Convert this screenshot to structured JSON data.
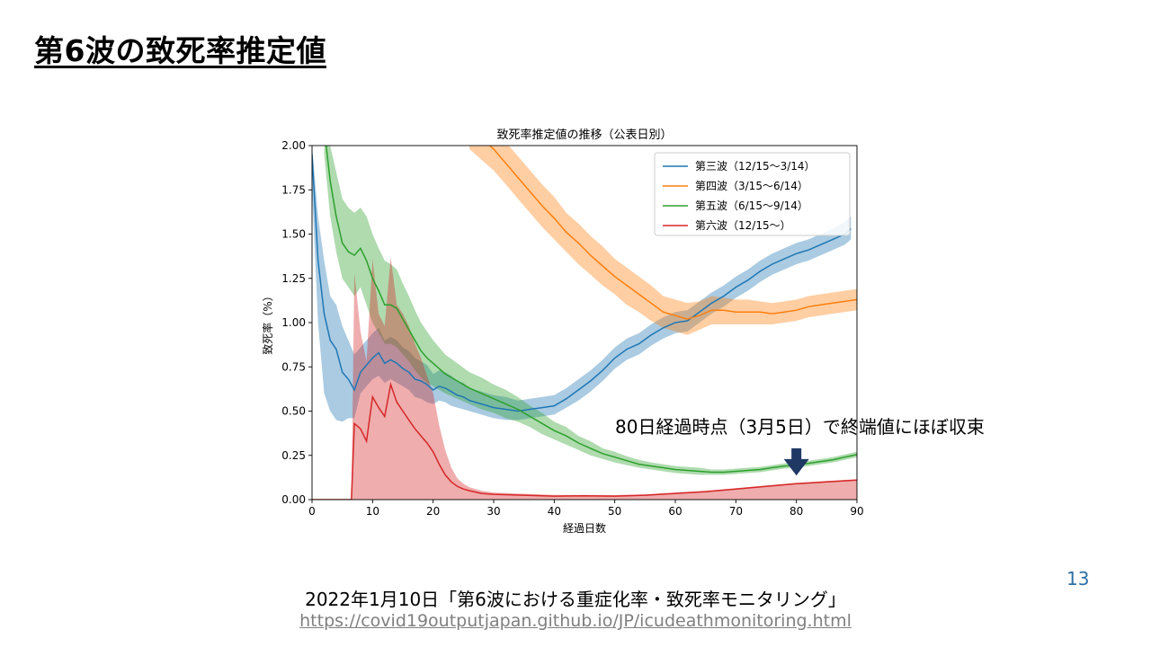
{
  "slide": {
    "title": "第6波の致死率推定値",
    "callout": "80日経過時点（3月5日）で終端値にほぼ収束",
    "page_number": "13",
    "source_title": "2022年1月10日「第6波における重症化率・致死率モニタリング」",
    "source_url": "https://covid19outputjapan.github.io/JP/icudeathmonitoring.html"
  },
  "colors": {
    "wave3": "#1f77b4",
    "wave4": "#ff7f0e",
    "wave5": "#2ca02c",
    "wave6": "#d62728",
    "arrow": "#1f3864"
  },
  "chart_data": {
    "type": "line",
    "title": "致死率推定値の推移（公表日別）",
    "xlabel": "経過日数",
    "ylabel": "致死率（%）",
    "xlim": [
      0,
      90
    ],
    "ylim": [
      0,
      2.0
    ],
    "xticks": [
      0,
      10,
      20,
      30,
      40,
      50,
      60,
      70,
      80,
      90
    ],
    "yticks": [
      0.0,
      0.25,
      0.5,
      0.75,
      1.0,
      1.25,
      1.5,
      1.75,
      2.0
    ],
    "legend_position": "top-right",
    "annotation": {
      "x": 80,
      "y": 0.11,
      "marker": "arrow-down"
    },
    "series": [
      {
        "name": "第三波（12/15〜3/14）",
        "x": [
          0,
          1,
          2,
          3,
          4,
          5,
          6,
          7,
          8,
          9,
          10,
          11,
          12,
          13,
          14,
          15,
          16,
          17,
          18,
          19,
          20,
          21,
          22,
          23,
          24,
          25,
          26,
          28,
          30,
          32,
          34,
          36,
          38,
          40,
          42,
          44,
          46,
          48,
          50,
          52,
          54,
          56,
          58,
          60,
          62,
          64,
          66,
          68,
          70,
          72,
          74,
          76,
          78,
          80,
          82,
          84,
          86,
          88,
          89
        ],
        "y": [
          1.95,
          1.35,
          1.05,
          0.9,
          0.85,
          0.72,
          0.68,
          0.62,
          0.72,
          0.76,
          0.8,
          0.83,
          0.77,
          0.79,
          0.77,
          0.74,
          0.72,
          0.68,
          0.67,
          0.65,
          0.62,
          0.64,
          0.63,
          0.61,
          0.59,
          0.58,
          0.56,
          0.54,
          0.52,
          0.51,
          0.5,
          0.51,
          0.52,
          0.53,
          0.57,
          0.62,
          0.67,
          0.73,
          0.8,
          0.85,
          0.88,
          0.93,
          0.97,
          1.0,
          1.01,
          1.06,
          1.11,
          1.15,
          1.2,
          1.24,
          1.29,
          1.33,
          1.36,
          1.39,
          1.41,
          1.44,
          1.47,
          1.5,
          1.53
        ],
        "lower": [
          1.75,
          1.0,
          0.6,
          0.5,
          0.45,
          0.44,
          0.46,
          0.46,
          0.6,
          0.64,
          0.68,
          0.7,
          0.66,
          0.68,
          0.66,
          0.64,
          0.62,
          0.58,
          0.57,
          0.55,
          0.54,
          0.56,
          0.55,
          0.53,
          0.52,
          0.51,
          0.5,
          0.48,
          0.46,
          0.45,
          0.45,
          0.46,
          0.47,
          0.48,
          0.52,
          0.56,
          0.61,
          0.67,
          0.74,
          0.79,
          0.82,
          0.87,
          0.91,
          0.94,
          0.95,
          1.0,
          1.05,
          1.09,
          1.14,
          1.18,
          1.23,
          1.27,
          1.3,
          1.33,
          1.35,
          1.38,
          1.41,
          1.44,
          1.47
        ],
        "upper": [
          2.0,
          1.6,
          1.35,
          1.15,
          1.1,
          0.98,
          0.9,
          0.82,
          0.86,
          0.9,
          0.94,
          0.97,
          0.9,
          0.92,
          0.9,
          0.86,
          0.84,
          0.8,
          0.78,
          0.76,
          0.71,
          0.73,
          0.72,
          0.7,
          0.67,
          0.66,
          0.63,
          0.61,
          0.59,
          0.58,
          0.56,
          0.57,
          0.58,
          0.59,
          0.63,
          0.68,
          0.73,
          0.79,
          0.86,
          0.91,
          0.94,
          0.99,
          1.03,
          1.06,
          1.07,
          1.12,
          1.17,
          1.21,
          1.26,
          1.3,
          1.35,
          1.39,
          1.42,
          1.45,
          1.47,
          1.5,
          1.53,
          1.57,
          1.6
        ]
      },
      {
        "name": "第四波（3/15〜6/14）",
        "x": [
          26,
          28,
          30,
          32,
          34,
          36,
          38,
          40,
          42,
          44,
          46,
          48,
          50,
          52,
          54,
          56,
          58,
          60,
          62,
          64,
          66,
          68,
          70,
          72,
          74,
          76,
          78,
          80,
          82,
          84,
          86,
          88,
          90
        ],
        "y": [
          2.1,
          2.04,
          1.98,
          1.9,
          1.82,
          1.74,
          1.66,
          1.59,
          1.51,
          1.45,
          1.38,
          1.32,
          1.26,
          1.21,
          1.16,
          1.11,
          1.06,
          1.04,
          1.02,
          1.04,
          1.07,
          1.07,
          1.06,
          1.06,
          1.06,
          1.05,
          1.06,
          1.07,
          1.09,
          1.1,
          1.11,
          1.12,
          1.13
        ],
        "lower": [
          1.98,
          1.92,
          1.86,
          1.78,
          1.7,
          1.62,
          1.54,
          1.47,
          1.4,
          1.33,
          1.27,
          1.21,
          1.16,
          1.1,
          1.06,
          1.01,
          0.97,
          0.95,
          0.93,
          0.96,
          0.99,
          0.99,
          0.99,
          0.99,
          0.99,
          0.99,
          1.0,
          1.01,
          1.03,
          1.04,
          1.05,
          1.06,
          1.07
        ],
        "upper": [
          2.22,
          2.16,
          2.1,
          2.02,
          1.94,
          1.86,
          1.78,
          1.71,
          1.62,
          1.56,
          1.49,
          1.43,
          1.36,
          1.31,
          1.26,
          1.21,
          1.15,
          1.13,
          1.11,
          1.12,
          1.15,
          1.14,
          1.13,
          1.13,
          1.12,
          1.11,
          1.12,
          1.13,
          1.15,
          1.16,
          1.17,
          1.18,
          1.19
        ]
      },
      {
        "name": "第五波（6/15〜9/14）",
        "x": [
          2,
          3,
          4,
          5,
          6,
          7,
          8,
          9,
          10,
          11,
          12,
          13,
          14,
          15,
          16,
          17,
          18,
          19,
          20,
          21,
          22,
          24,
          26,
          28,
          30,
          32,
          34,
          36,
          38,
          40,
          42,
          44,
          46,
          48,
          50,
          52,
          54,
          56,
          58,
          60,
          62,
          64,
          66,
          68,
          70,
          72,
          74,
          76,
          78,
          80,
          82,
          84,
          86,
          88,
          90
        ],
        "y": [
          2.1,
          1.8,
          1.6,
          1.45,
          1.4,
          1.38,
          1.42,
          1.35,
          1.25,
          1.18,
          1.1,
          1.1,
          1.08,
          1.02,
          0.96,
          0.9,
          0.84,
          0.8,
          0.77,
          0.74,
          0.71,
          0.67,
          0.63,
          0.6,
          0.57,
          0.54,
          0.51,
          0.47,
          0.43,
          0.39,
          0.36,
          0.32,
          0.29,
          0.26,
          0.24,
          0.22,
          0.2,
          0.19,
          0.18,
          0.17,
          0.165,
          0.16,
          0.155,
          0.155,
          0.16,
          0.165,
          0.17,
          0.18,
          0.19,
          0.195,
          0.205,
          0.215,
          0.225,
          0.24,
          0.255
        ],
        "lower": [
          1.95,
          1.6,
          1.4,
          1.25,
          1.2,
          1.15,
          1.2,
          1.1,
          1.0,
          0.94,
          0.88,
          0.88,
          0.86,
          0.82,
          0.78,
          0.73,
          0.69,
          0.66,
          0.64,
          0.62,
          0.6,
          0.57,
          0.54,
          0.51,
          0.49,
          0.46,
          0.44,
          0.41,
          0.37,
          0.34,
          0.31,
          0.28,
          0.25,
          0.23,
          0.21,
          0.195,
          0.18,
          0.17,
          0.16,
          0.15,
          0.145,
          0.14,
          0.14,
          0.14,
          0.145,
          0.15,
          0.155,
          0.165,
          0.175,
          0.18,
          0.19,
          0.2,
          0.21,
          0.225,
          0.24
        ],
        "upper": [
          2.2,
          2.0,
          1.85,
          1.7,
          1.65,
          1.62,
          1.65,
          1.6,
          1.5,
          1.42,
          1.35,
          1.33,
          1.3,
          1.22,
          1.15,
          1.07,
          1.0,
          0.95,
          0.9,
          0.86,
          0.82,
          0.77,
          0.72,
          0.69,
          0.65,
          0.62,
          0.58,
          0.53,
          0.49,
          0.44,
          0.41,
          0.36,
          0.33,
          0.29,
          0.27,
          0.245,
          0.225,
          0.21,
          0.2,
          0.19,
          0.185,
          0.18,
          0.17,
          0.17,
          0.175,
          0.18,
          0.185,
          0.195,
          0.205,
          0.21,
          0.22,
          0.23,
          0.24,
          0.255,
          0.27
        ]
      },
      {
        "name": "第六波（12/15〜）",
        "x": [
          0,
          6,
          6.5,
          7,
          8,
          9,
          10,
          11,
          12,
          13,
          14,
          15,
          16,
          17,
          18,
          19,
          20,
          21,
          22,
          23,
          24,
          25,
          26,
          28,
          30,
          35,
          40,
          45,
          50,
          55,
          60,
          65,
          70,
          75,
          80,
          85,
          90
        ],
        "y": [
          0.0,
          0.0,
          0.0,
          0.43,
          0.4,
          0.33,
          0.58,
          0.52,
          0.47,
          0.65,
          0.55,
          0.5,
          0.45,
          0.4,
          0.36,
          0.32,
          0.27,
          0.2,
          0.14,
          0.1,
          0.075,
          0.06,
          0.05,
          0.035,
          0.03,
          0.025,
          0.02,
          0.022,
          0.02,
          0.025,
          0.035,
          0.045,
          0.06,
          0.075,
          0.09,
          0.1,
          0.11
        ],
        "lower": [
          0.0,
          0.0,
          0.0,
          0.0,
          0.0,
          0.0,
          0.0,
          0.0,
          0.0,
          0.0,
          0.0,
          0.0,
          0.0,
          0.0,
          0.0,
          0.0,
          0.0,
          0.0,
          0.0,
          0.0,
          0.0,
          0.0,
          0.0,
          0.0,
          0.0,
          0.0,
          0.0,
          0.0,
          0.0,
          0.0,
          0.0,
          0.0,
          0.0,
          0.0,
          0.0,
          0.0,
          0.0
        ],
        "upper": [
          0.0,
          0.0,
          0.0,
          1.28,
          0.95,
          0.78,
          1.36,
          1.05,
          0.98,
          1.37,
          1.1,
          1.05,
          0.98,
          0.88,
          0.8,
          0.7,
          0.6,
          0.42,
          0.28,
          0.18,
          0.12,
          0.09,
          0.07,
          0.05,
          0.04,
          0.033,
          0.027,
          0.027,
          0.026,
          0.03,
          0.04,
          0.05,
          0.065,
          0.08,
          0.095,
          0.105,
          0.115
        ]
      }
    ]
  }
}
